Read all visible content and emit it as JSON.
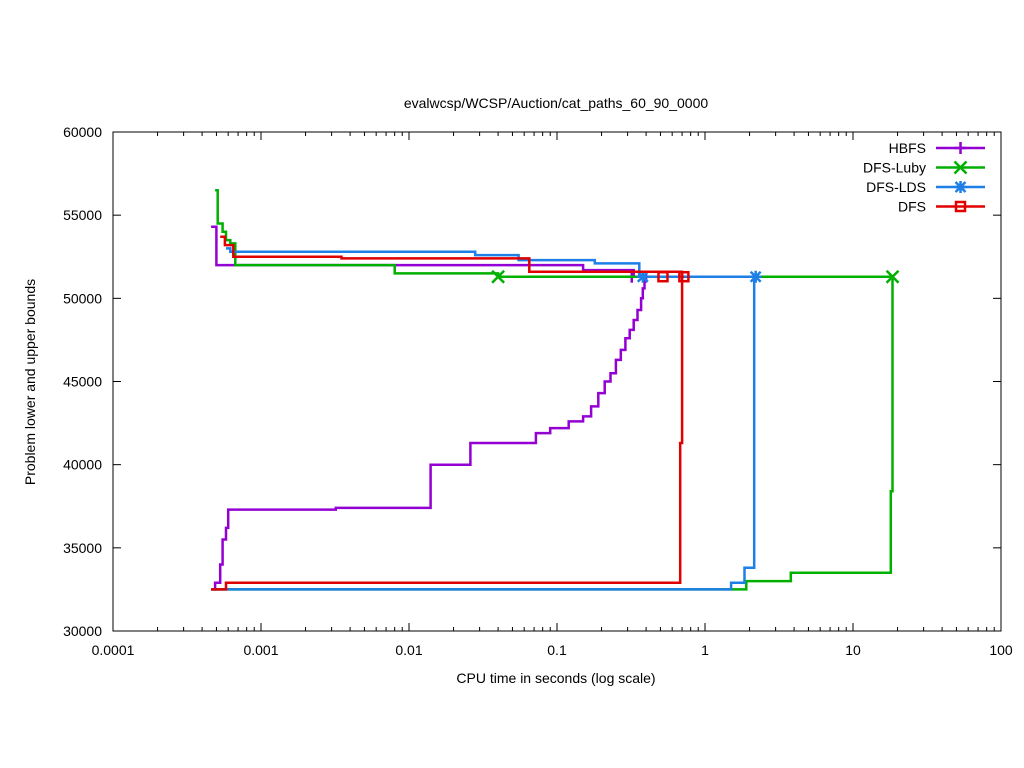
{
  "chart_data": {
    "type": "line",
    "title": "evalwcsp/WCSP/Auction/cat_paths_60_90_0000",
    "xlabel": "CPU time in seconds (log scale)",
    "ylabel": "Problem lower and upper bounds",
    "xscale": "log",
    "xlim": [
      0.0001,
      100
    ],
    "ylim": [
      30000,
      60000
    ],
    "x_ticks": [
      {
        "value": 0.0001,
        "label": "0.0001"
      },
      {
        "value": 0.001,
        "label": "0.001"
      },
      {
        "value": 0.01,
        "label": "0.01"
      },
      {
        "value": 0.1,
        "label": "0.1"
      },
      {
        "value": 1,
        "label": "1"
      },
      {
        "value": 10,
        "label": "10"
      },
      {
        "value": 100,
        "label": "100"
      }
    ],
    "y_ticks": [
      {
        "value": 30000,
        "label": "30000"
      },
      {
        "value": 35000,
        "label": "35000"
      },
      {
        "value": 40000,
        "label": "40000"
      },
      {
        "value": 45000,
        "label": "45000"
      },
      {
        "value": 50000,
        "label": "50000"
      },
      {
        "value": 55000,
        "label": "55000"
      },
      {
        "value": 60000,
        "label": "60000"
      }
    ],
    "grid": false,
    "legend_position": "top-right",
    "series": [
      {
        "name": "HBFS",
        "color": "#9400d3",
        "marker": "plus",
        "upper": [
          [
            0.00046,
            54300
          ],
          [
            0.0005,
            54300
          ],
          [
            0.0005,
            52000
          ],
          [
            0.00062,
            52000
          ],
          [
            0.00062,
            52000
          ],
          [
            0.15,
            52000
          ],
          [
            0.15,
            51700
          ],
          [
            0.33,
            51700
          ],
          [
            0.33,
            51300
          ],
          [
            0.4,
            51300
          ]
        ],
        "lower": [
          [
            0.00046,
            32500
          ],
          [
            0.00049,
            32500
          ],
          [
            0.00049,
            32900
          ],
          [
            0.00053,
            32900
          ],
          [
            0.00053,
            34000
          ],
          [
            0.00055,
            34000
          ],
          [
            0.00055,
            35500
          ],
          [
            0.00058,
            35500
          ],
          [
            0.00058,
            36200
          ],
          [
            0.0006,
            36200
          ],
          [
            0.0006,
            37300
          ],
          [
            0.0032,
            37300
          ],
          [
            0.0032,
            37400
          ],
          [
            0.014,
            37400
          ],
          [
            0.014,
            40000
          ],
          [
            0.026,
            40000
          ],
          [
            0.026,
            41300
          ],
          [
            0.072,
            41300
          ],
          [
            0.072,
            41900
          ],
          [
            0.09,
            41900
          ],
          [
            0.09,
            42200
          ],
          [
            0.12,
            42200
          ],
          [
            0.12,
            42600
          ],
          [
            0.15,
            42600
          ],
          [
            0.15,
            42900
          ],
          [
            0.17,
            42900
          ],
          [
            0.17,
            43500
          ],
          [
            0.19,
            43500
          ],
          [
            0.19,
            44300
          ],
          [
            0.21,
            44300
          ],
          [
            0.21,
            45000
          ],
          [
            0.23,
            45000
          ],
          [
            0.23,
            45500
          ],
          [
            0.25,
            45500
          ],
          [
            0.25,
            46300
          ],
          [
            0.27,
            46300
          ],
          [
            0.27,
            46900
          ],
          [
            0.29,
            46900
          ],
          [
            0.29,
            47600
          ],
          [
            0.31,
            47600
          ],
          [
            0.31,
            48100
          ],
          [
            0.33,
            48100
          ],
          [
            0.33,
            48700
          ],
          [
            0.35,
            48700
          ],
          [
            0.35,
            49300
          ],
          [
            0.37,
            49300
          ],
          [
            0.37,
            50000
          ],
          [
            0.38,
            50000
          ],
          [
            0.38,
            50600
          ],
          [
            0.39,
            50600
          ],
          [
            0.39,
            51300
          ],
          [
            0.4,
            51300
          ]
        ],
        "markers": [
          [
            0.32,
            51300
          ],
          [
            0.4,
            51300
          ]
        ]
      },
      {
        "name": "DFS-Luby",
        "color": "#00b000",
        "marker": "cross",
        "upper": [
          [
            0.00049,
            56500
          ],
          [
            0.00051,
            56500
          ],
          [
            0.00051,
            54500
          ],
          [
            0.00055,
            54500
          ],
          [
            0.00055,
            54000
          ],
          [
            0.00058,
            54000
          ],
          [
            0.00058,
            53500
          ],
          [
            0.00062,
            53500
          ],
          [
            0.00062,
            53300
          ],
          [
            0.00067,
            53300
          ],
          [
            0.00067,
            52000
          ],
          [
            0.008,
            52000
          ],
          [
            0.008,
            51500
          ],
          [
            0.04,
            51500
          ],
          [
            0.04,
            51300
          ],
          [
            18.5,
            51300
          ]
        ],
        "lower": [
          [
            0.00046,
            32500
          ],
          [
            1.9,
            32500
          ],
          [
            1.9,
            33000
          ],
          [
            3.8,
            33000
          ],
          [
            3.8,
            33500
          ],
          [
            18,
            33500
          ],
          [
            18,
            38400
          ],
          [
            18.5,
            38400
          ],
          [
            18.5,
            51300
          ]
        ],
        "markers": [
          [
            0.04,
            51300
          ],
          [
            18.5,
            51300
          ]
        ]
      },
      {
        "name": "DFS-LDS",
        "color": "#1e7fe6",
        "marker": "star",
        "upper": [
          [
            0.00058,
            53000
          ],
          [
            0.00062,
            53000
          ],
          [
            0.00062,
            52800
          ],
          [
            0.028,
            52800
          ],
          [
            0.028,
            52600
          ],
          [
            0.055,
            52600
          ],
          [
            0.055,
            52300
          ],
          [
            0.18,
            52300
          ],
          [
            0.18,
            52100
          ],
          [
            0.36,
            52100
          ],
          [
            0.36,
            51300
          ],
          [
            2.2,
            51300
          ]
        ],
        "lower": [
          [
            0.00046,
            32500
          ],
          [
            1.5,
            32500
          ],
          [
            1.5,
            32900
          ],
          [
            1.85,
            32900
          ],
          [
            1.85,
            33800
          ],
          [
            2.15,
            33800
          ],
          [
            2.15,
            51300
          ],
          [
            2.2,
            51300
          ]
        ],
        "markers": [
          [
            0.38,
            51300
          ],
          [
            2.2,
            51300
          ]
        ]
      },
      {
        "name": "DFS",
        "color": "#e00000",
        "marker": "square",
        "upper": [
          [
            0.00053,
            53700
          ],
          [
            0.00057,
            53700
          ],
          [
            0.00057,
            53200
          ],
          [
            0.00065,
            53200
          ],
          [
            0.00065,
            52500
          ],
          [
            0.0035,
            52500
          ],
          [
            0.0035,
            52400
          ],
          [
            0.065,
            52400
          ],
          [
            0.065,
            51600
          ],
          [
            0.7,
            51600
          ],
          [
            0.7,
            51300
          ],
          [
            0.72,
            51300
          ]
        ],
        "lower": [
          [
            0.00046,
            32500
          ],
          [
            0.00058,
            32500
          ],
          [
            0.00058,
            32900
          ],
          [
            0.68,
            32900
          ],
          [
            0.68,
            41300
          ],
          [
            0.7,
            41300
          ],
          [
            0.7,
            51300
          ],
          [
            0.72,
            51300
          ]
        ],
        "markers": [
          [
            0.52,
            51300
          ],
          [
            0.72,
            51300
          ]
        ]
      }
    ]
  }
}
